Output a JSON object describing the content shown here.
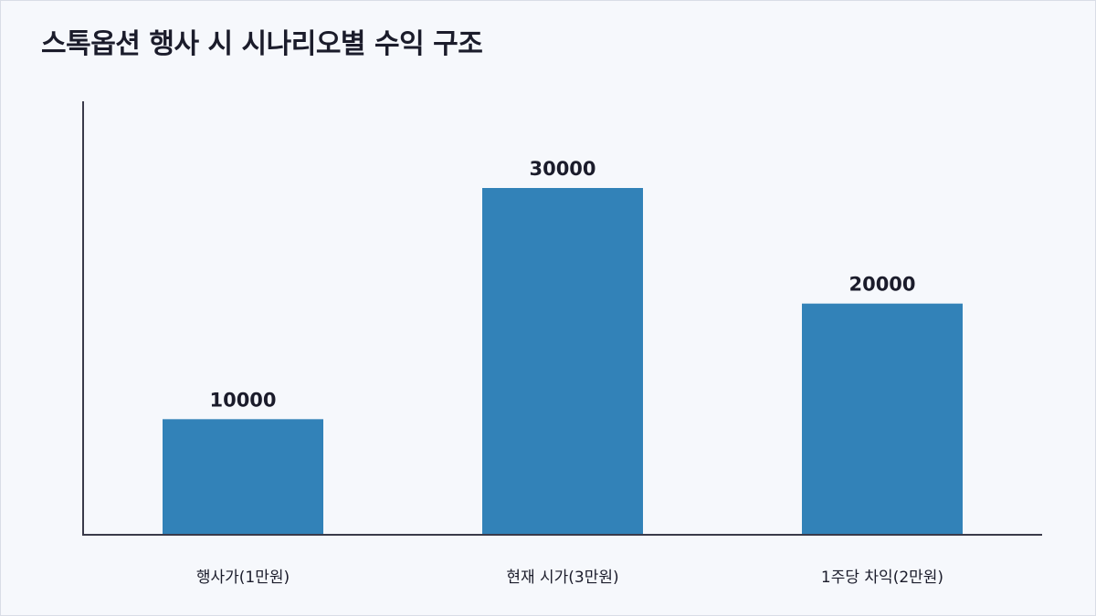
{
  "chart_data": {
    "type": "bar",
    "title": "스톡옵션 행사 시 시나리오별 수익 구조",
    "xlabel": "",
    "ylabel": "",
    "categories": [
      "행사가(1만원)",
      "현재 시가(3만원)",
      "1주당 차익(2만원)"
    ],
    "values": [
      10000,
      30000,
      20000
    ],
    "data_labels": [
      "10000",
      "30000",
      "20000"
    ],
    "ylim": [
      0,
      37500
    ],
    "grid": false,
    "legend": "none",
    "bar_color": "#3282b8",
    "axis_color": "#3a3a4a"
  }
}
